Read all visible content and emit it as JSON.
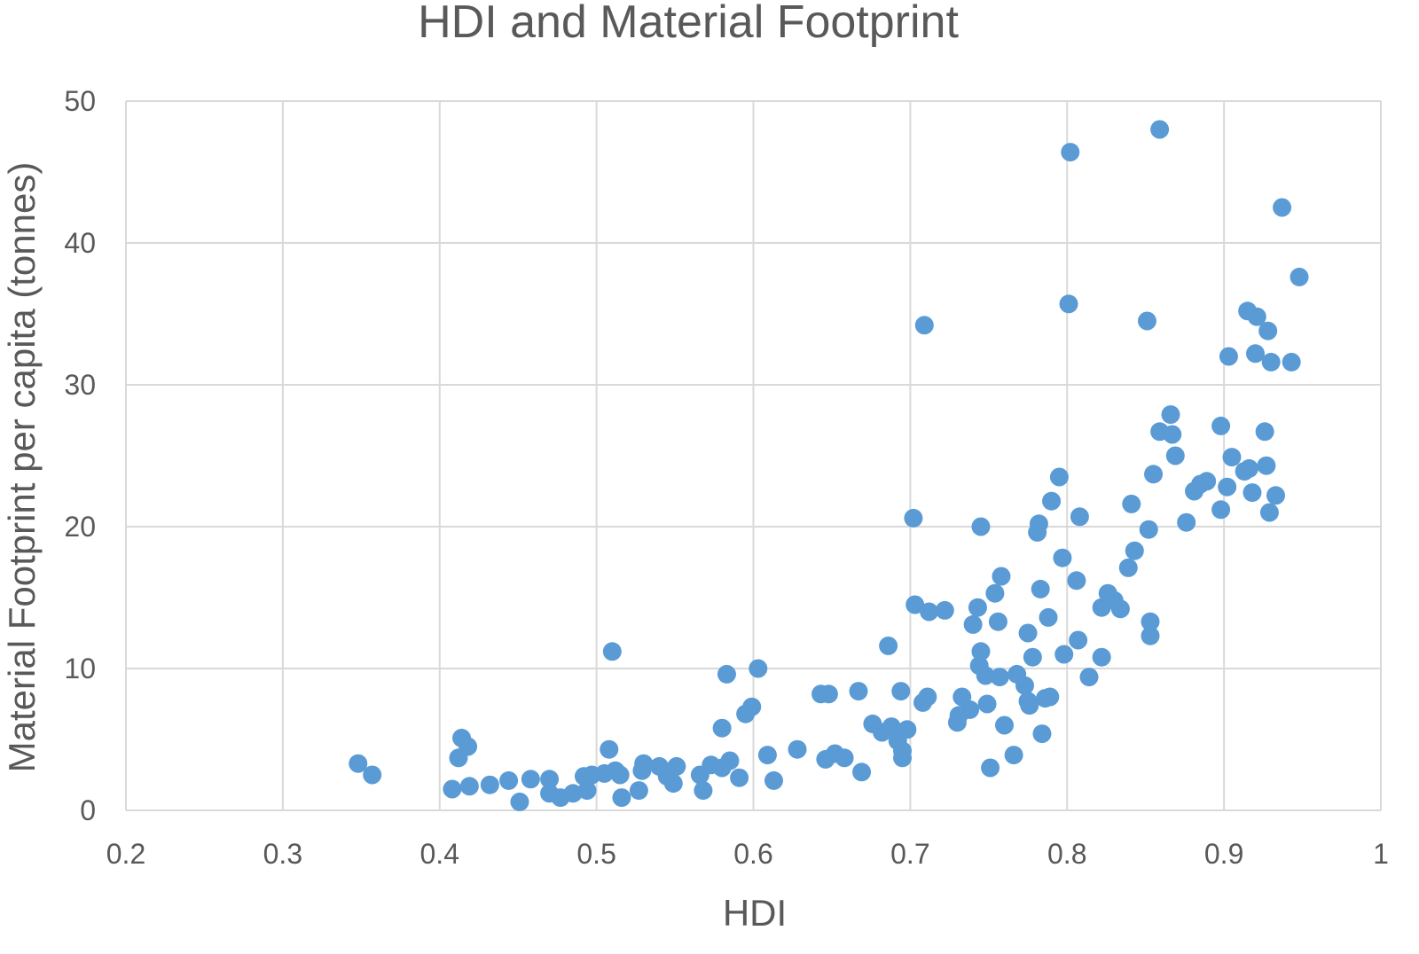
{
  "chart_data": {
    "type": "scatter",
    "title": "HDI and Material Footprint",
    "xlabel": "HDI",
    "ylabel": "Material Footprint  per capita (tonnes)",
    "xlim": [
      0.2,
      1
    ],
    "ylim": [
      0,
      50
    ],
    "x_ticks": [
      "0.2",
      "0.3",
      "0.4",
      "0.5",
      "0.6",
      "0.7",
      "0.8",
      "0.9",
      "1"
    ],
    "y_ticks": [
      "0",
      "10",
      "20",
      "30",
      "40",
      "50"
    ],
    "grid": true,
    "legend": "none",
    "marker_color": "#5b9bd5",
    "points": [
      [
        0.348,
        3.3
      ],
      [
        0.357,
        2.5
      ],
      [
        0.408,
        1.5
      ],
      [
        0.412,
        3.7
      ],
      [
        0.414,
        5.1
      ],
      [
        0.418,
        4.5
      ],
      [
        0.419,
        1.7
      ],
      [
        0.432,
        1.8
      ],
      [
        0.444,
        2.1
      ],
      [
        0.451,
        0.6
      ],
      [
        0.458,
        2.2
      ],
      [
        0.47,
        2.2
      ],
      [
        0.47,
        1.2
      ],
      [
        0.477,
        0.9
      ],
      [
        0.485,
        1.2
      ],
      [
        0.492,
        2.4
      ],
      [
        0.494,
        1.4
      ],
      [
        0.497,
        2.5
      ],
      [
        0.505,
        2.6
      ],
      [
        0.508,
        4.3
      ],
      [
        0.51,
        11.2
      ],
      [
        0.512,
        2.8
      ],
      [
        0.515,
        2.5
      ],
      [
        0.516,
        0.9
      ],
      [
        0.527,
        1.4
      ],
      [
        0.529,
        2.8
      ],
      [
        0.53,
        3.3
      ],
      [
        0.54,
        3.1
      ],
      [
        0.545,
        2.4
      ],
      [
        0.549,
        1.9
      ],
      [
        0.551,
        3.1
      ],
      [
        0.566,
        2.5
      ],
      [
        0.568,
        1.4
      ],
      [
        0.573,
        3.2
      ],
      [
        0.58,
        5.8
      ],
      [
        0.58,
        3.0
      ],
      [
        0.583,
        9.6
      ],
      [
        0.585,
        3.5
      ],
      [
        0.591,
        2.3
      ],
      [
        0.595,
        6.8
      ],
      [
        0.599,
        7.3
      ],
      [
        0.603,
        10.0
      ],
      [
        0.609,
        3.9
      ],
      [
        0.613,
        2.1
      ],
      [
        0.628,
        4.3
      ],
      [
        0.643,
        8.2
      ],
      [
        0.646,
        3.6
      ],
      [
        0.648,
        8.2
      ],
      [
        0.652,
        4.0
      ],
      [
        0.658,
        3.7
      ],
      [
        0.667,
        8.4
      ],
      [
        0.669,
        2.7
      ],
      [
        0.676,
        6.1
      ],
      [
        0.682,
        5.5
      ],
      [
        0.686,
        11.6
      ],
      [
        0.688,
        5.9
      ],
      [
        0.692,
        4.9
      ],
      [
        0.694,
        8.4
      ],
      [
        0.695,
        4.2
      ],
      [
        0.695,
        3.7
      ],
      [
        0.698,
        5.7
      ],
      [
        0.702,
        20.6
      ],
      [
        0.703,
        14.5
      ],
      [
        0.708,
        7.6
      ],
      [
        0.709,
        34.2
      ],
      [
        0.711,
        8.0
      ],
      [
        0.712,
        14.0
      ],
      [
        0.722,
        14.1
      ],
      [
        0.73,
        6.2
      ],
      [
        0.731,
        6.7
      ],
      [
        0.733,
        8.0
      ],
      [
        0.738,
        7.1
      ],
      [
        0.74,
        13.1
      ],
      [
        0.743,
        14.3
      ],
      [
        0.744,
        10.2
      ],
      [
        0.745,
        11.2
      ],
      [
        0.745,
        20.0
      ],
      [
        0.748,
        9.5
      ],
      [
        0.749,
        7.5
      ],
      [
        0.751,
        3.0
      ],
      [
        0.754,
        15.3
      ],
      [
        0.756,
        13.3
      ],
      [
        0.757,
        9.4
      ],
      [
        0.758,
        16.5
      ],
      [
        0.76,
        6.0
      ],
      [
        0.766,
        3.9
      ],
      [
        0.768,
        9.6
      ],
      [
        0.773,
        8.8
      ],
      [
        0.775,
        12.5
      ],
      [
        0.775,
        7.7
      ],
      [
        0.776,
        7.4
      ],
      [
        0.778,
        10.8
      ],
      [
        0.781,
        19.6
      ],
      [
        0.782,
        20.2
      ],
      [
        0.783,
        15.6
      ],
      [
        0.784,
        5.4
      ],
      [
        0.786,
        7.9
      ],
      [
        0.788,
        13.6
      ],
      [
        0.789,
        8.0
      ],
      [
        0.79,
        21.8
      ],
      [
        0.795,
        23.5
      ],
      [
        0.797,
        17.8
      ],
      [
        0.798,
        11.0
      ],
      [
        0.801,
        35.7
      ],
      [
        0.802,
        46.4
      ],
      [
        0.806,
        16.2
      ],
      [
        0.807,
        12.0
      ],
      [
        0.808,
        20.7
      ],
      [
        0.814,
        9.4
      ],
      [
        0.822,
        10.8
      ],
      [
        0.822,
        14.3
      ],
      [
        0.826,
        15.3
      ],
      [
        0.83,
        14.8
      ],
      [
        0.834,
        14.2
      ],
      [
        0.839,
        17.1
      ],
      [
        0.841,
        21.6
      ],
      [
        0.843,
        18.3
      ],
      [
        0.851,
        34.5
      ],
      [
        0.852,
        19.8
      ],
      [
        0.853,
        13.3
      ],
      [
        0.853,
        12.3
      ],
      [
        0.855,
        23.7
      ],
      [
        0.859,
        48.0
      ],
      [
        0.859,
        26.7
      ],
      [
        0.866,
        27.9
      ],
      [
        0.867,
        26.5
      ],
      [
        0.869,
        25.0
      ],
      [
        0.876,
        20.3
      ],
      [
        0.881,
        22.5
      ],
      [
        0.885,
        23.0
      ],
      [
        0.889,
        23.2
      ],
      [
        0.898,
        21.2
      ],
      [
        0.898,
        27.1
      ],
      [
        0.902,
        22.8
      ],
      [
        0.903,
        32.0
      ],
      [
        0.905,
        24.9
      ],
      [
        0.913,
        23.9
      ],
      [
        0.915,
        35.2
      ],
      [
        0.916,
        24.1
      ],
      [
        0.918,
        22.4
      ],
      [
        0.92,
        32.2
      ],
      [
        0.921,
        34.8
      ],
      [
        0.926,
        26.7
      ],
      [
        0.927,
        24.3
      ],
      [
        0.928,
        33.8
      ],
      [
        0.929,
        21.0
      ],
      [
        0.93,
        31.6
      ],
      [
        0.933,
        22.2
      ],
      [
        0.937,
        42.5
      ],
      [
        0.943,
        31.6
      ],
      [
        0.948,
        37.6
      ]
    ]
  }
}
